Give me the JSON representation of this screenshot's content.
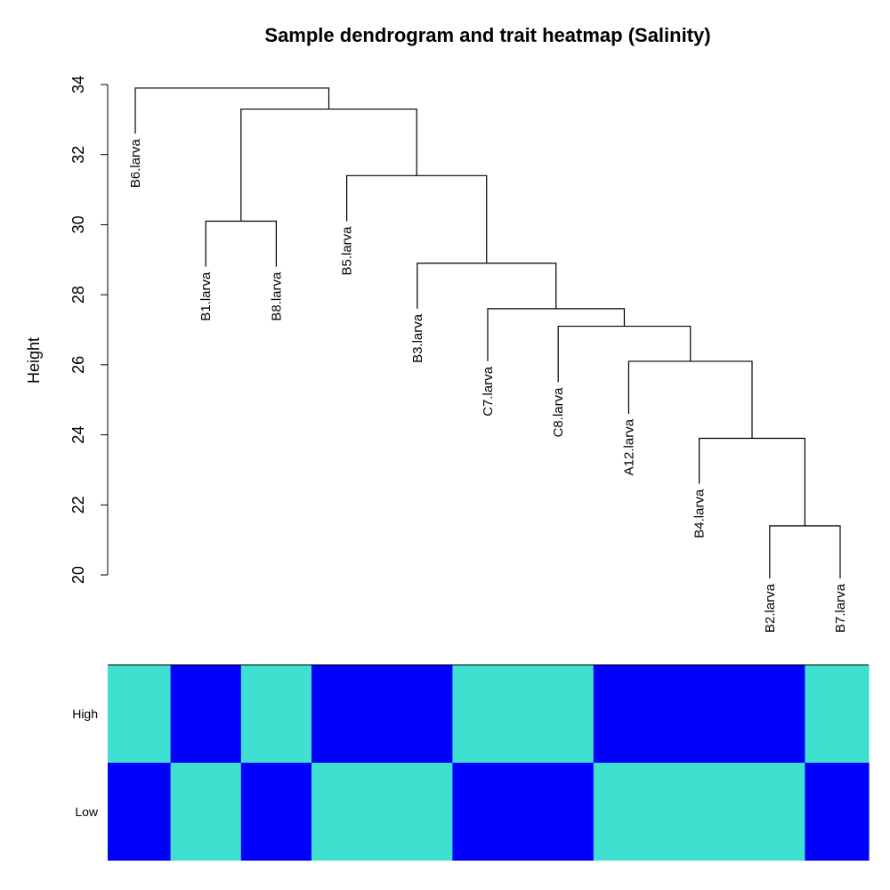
{
  "chart_data": [
    {
      "type": "dendrogram",
      "title": "Sample dendrogram and trait heatmap (Salinity)",
      "ylabel": "Height",
      "ylim": [
        20,
        34
      ],
      "y_ticks": [
        20,
        22,
        24,
        26,
        28,
        30,
        32,
        34
      ],
      "leaves": [
        "B6.larva",
        "B1.larva",
        "B8.larva",
        "B5.larva",
        "B3.larva",
        "C7.larva",
        "C8.larva",
        "A12.larva",
        "B4.larva",
        "B2.larva",
        "B7.larva"
      ],
      "merges": [
        {
          "left": "B2.larva",
          "right": "B7.larva",
          "height": 21.4
        },
        {
          "left": "B4.larva",
          "right": 0,
          "height": 23.9
        },
        {
          "left": "A12.larva",
          "right": 1,
          "height": 26.1
        },
        {
          "left": "C8.larva",
          "right": 2,
          "height": 27.1
        },
        {
          "left": "C7.larva",
          "right": 3,
          "height": 27.6
        },
        {
          "left": "B3.larva",
          "right": 4,
          "height": 28.9
        },
        {
          "left": "B1.larva",
          "right": "B8.larva",
          "height": 30.1
        },
        {
          "left": "B5.larva",
          "right": 5,
          "height": 31.4
        },
        {
          "left": 6,
          "right": 7,
          "height": 33.3
        },
        {
          "left": "B6.larva",
          "right": 8,
          "height": 33.9
        }
      ],
      "leaf_label_tops": {
        "B6.larva": 32.6,
        "B1.larva": 28.8,
        "B8.larva": 28.8,
        "B5.larva": 30.1,
        "B3.larva": 27.6,
        "C7.larva": 26.1,
        "C8.larva": 25.5,
        "A12.larva": 24.6,
        "B4.larva": 22.6,
        "B2.larva": 19.9,
        "B7.larva": 19.9
      }
    },
    {
      "type": "heatmap",
      "rows": [
        "High",
        "Low"
      ],
      "columns": [
        "B6.larva",
        "B1.larva",
        "B8.larva",
        "B5.larva",
        "B3.larva",
        "C7.larva",
        "C8.larva",
        "A12.larva",
        "B4.larva",
        "B2.larva",
        "B7.larva"
      ],
      "values": [
        [
          1,
          0,
          1,
          0,
          0,
          1,
          1,
          0,
          0,
          0,
          1
        ],
        [
          0,
          1,
          0,
          1,
          1,
          0,
          0,
          1,
          1,
          1,
          0
        ]
      ],
      "colors": {
        "1": "#40E0D0",
        "0": "#0000FF"
      }
    }
  ]
}
